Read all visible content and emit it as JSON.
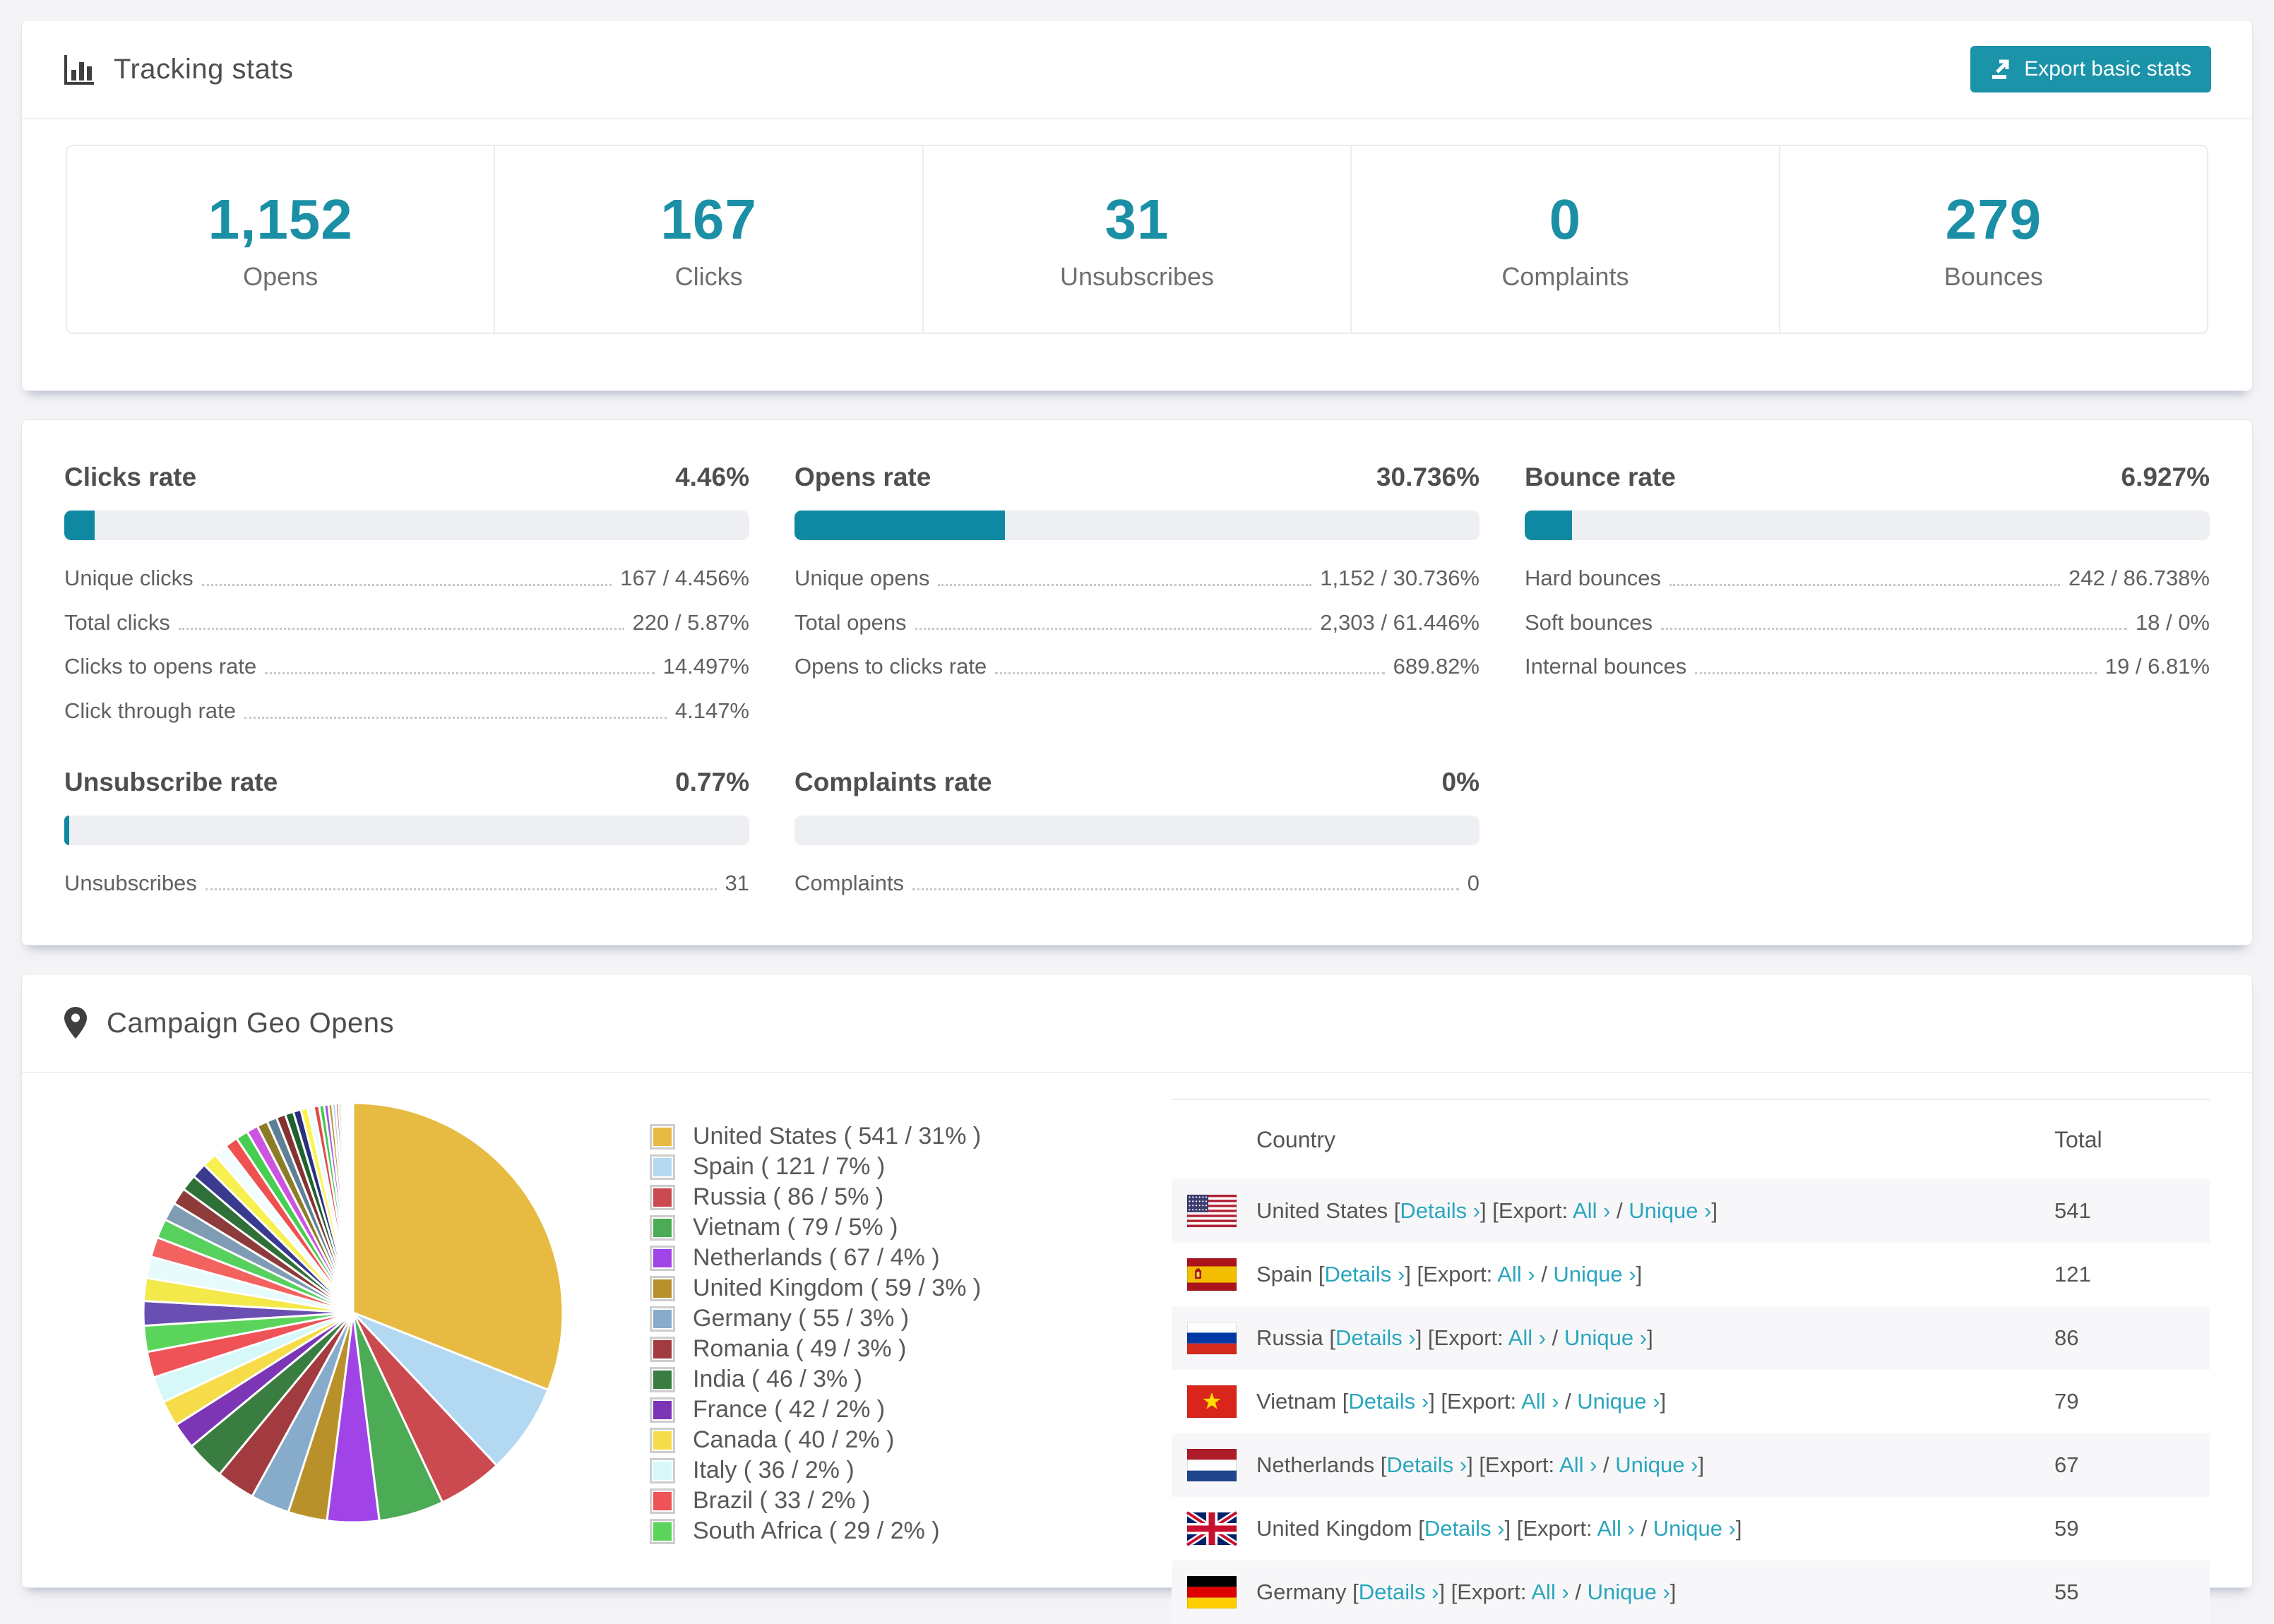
{
  "app": {
    "accent_teal": "#1590a6",
    "link_teal": "#2aa6bd"
  },
  "tracking": {
    "title": "Tracking stats",
    "export_button": "Export basic stats",
    "stats": [
      {
        "value": "1,152",
        "label": "Opens"
      },
      {
        "value": "167",
        "label": "Clicks"
      },
      {
        "value": "31",
        "label": "Unsubscribes"
      },
      {
        "value": "0",
        "label": "Complaints"
      },
      {
        "value": "279",
        "label": "Bounces"
      }
    ]
  },
  "rates": [
    {
      "title": "Clicks rate",
      "value": "4.46%",
      "pct": 4.46,
      "rows": [
        {
          "label": "Unique clicks",
          "value": "167 / 4.456%"
        },
        {
          "label": "Total clicks",
          "value": "220 / 5.87%"
        },
        {
          "label": "Clicks to opens rate",
          "value": "14.497%"
        },
        {
          "label": "Click through rate",
          "value": "4.147%"
        }
      ]
    },
    {
      "title": "Opens rate",
      "value": "30.736%",
      "pct": 30.736,
      "rows": [
        {
          "label": "Unique opens",
          "value": "1,152 / 30.736%"
        },
        {
          "label": "Total opens",
          "value": "2,303 / 61.446%"
        },
        {
          "label": "Opens to clicks rate",
          "value": "689.82%"
        }
      ]
    },
    {
      "title": "Bounce rate",
      "value": "6.927%",
      "pct": 6.927,
      "rows": [
        {
          "label": "Hard bounces",
          "value": "242 / 86.738%"
        },
        {
          "label": "Soft bounces",
          "value": "18 / 0%"
        },
        {
          "label": "Internal bounces",
          "value": "19 / 6.81%"
        }
      ]
    },
    {
      "title": "Unsubscribe rate",
      "value": "0.77%",
      "pct": 0.77,
      "rows": [
        {
          "label": "Unsubscribes",
          "value": "31"
        }
      ]
    },
    {
      "title": "Complaints rate",
      "value": "0%",
      "pct": 0,
      "rows": [
        {
          "label": "Complaints",
          "value": "0"
        }
      ]
    }
  ],
  "geo": {
    "title": "Campaign Geo Opens",
    "legend": [
      {
        "label": "United States ( 541 / 31% )",
        "color": "#e7bb41"
      },
      {
        "label": "Spain ( 121 / 7% )",
        "color": "#b3d9f2"
      },
      {
        "label": "Russia ( 86 / 5% )",
        "color": "#cb4a50"
      },
      {
        "label": "Vietnam ( 79 / 5% )",
        "color": "#4cab55"
      },
      {
        "label": "Netherlands ( 67 / 4% )",
        "color": "#a044e8"
      },
      {
        "label": "United Kingdom ( 59 / 3% )",
        "color": "#b8912b"
      },
      {
        "label": "Germany ( 55 / 3% )",
        "color": "#87abca"
      },
      {
        "label": "Romania ( 49 / 3% )",
        "color": "#a23b3f"
      },
      {
        "label": "India ( 46 / 3% )",
        "color": "#3a7d41"
      },
      {
        "label": "France ( 42 / 2% )",
        "color": "#7c35b5"
      },
      {
        "label": "Canada ( 40 / 2% )",
        "color": "#f7dc4a"
      },
      {
        "label": "Italy ( 36 / 2% )",
        "color": "#d6f8f8"
      },
      {
        "label": "Brazil ( 33 / 2% )",
        "color": "#ef5358"
      },
      {
        "label": "South Africa ( 29 / 2% )",
        "color": "#5bd45b"
      }
    ],
    "table": {
      "columns": {
        "country": "Country",
        "total": "Total"
      },
      "links": {
        "details": "Details",
        "export": "Export:",
        "all": "All",
        "unique": "Unique",
        "chevron": "›"
      },
      "rows": [
        {
          "country": "United States",
          "flag": "us",
          "total": "541"
        },
        {
          "country": "Spain",
          "flag": "es",
          "total": "121"
        },
        {
          "country": "Russia",
          "flag": "ru",
          "total": "86"
        },
        {
          "country": "Vietnam",
          "flag": "vn",
          "total": "79"
        },
        {
          "country": "Netherlands",
          "flag": "nl",
          "total": "67"
        },
        {
          "country": "United Kingdom",
          "flag": "gb",
          "total": "59"
        },
        {
          "country": "Germany",
          "flag": "de",
          "total": "55"
        }
      ]
    }
  },
  "chart_data": {
    "type": "pie",
    "title": "Campaign Geo Opens",
    "categories": [
      "United States",
      "Spain",
      "Russia",
      "Vietnam",
      "Netherlands",
      "United Kingdom",
      "Germany",
      "Romania",
      "India",
      "France",
      "Canada",
      "Italy",
      "Brazil",
      "South Africa"
    ],
    "values": [
      541,
      121,
      86,
      79,
      67,
      59,
      55,
      49,
      46,
      42,
      40,
      36,
      33,
      29
    ],
    "pct": [
      31,
      7,
      5,
      5,
      4,
      3,
      3,
      3,
      3,
      2,
      2,
      2,
      2,
      2
    ],
    "colors": [
      "#e7bb41",
      "#b3d9f2",
      "#cb4a50",
      "#4cab55",
      "#a044e8",
      "#b8912b",
      "#87abca",
      "#a23b3f",
      "#3a7d41",
      "#7c35b5",
      "#f7dc4a",
      "#d6f8f8",
      "#ef5358",
      "#5bd45b"
    ],
    "others_pct_estimated": 26,
    "legend_position": "right",
    "start_angle": "top",
    "direction": "clockwise"
  }
}
